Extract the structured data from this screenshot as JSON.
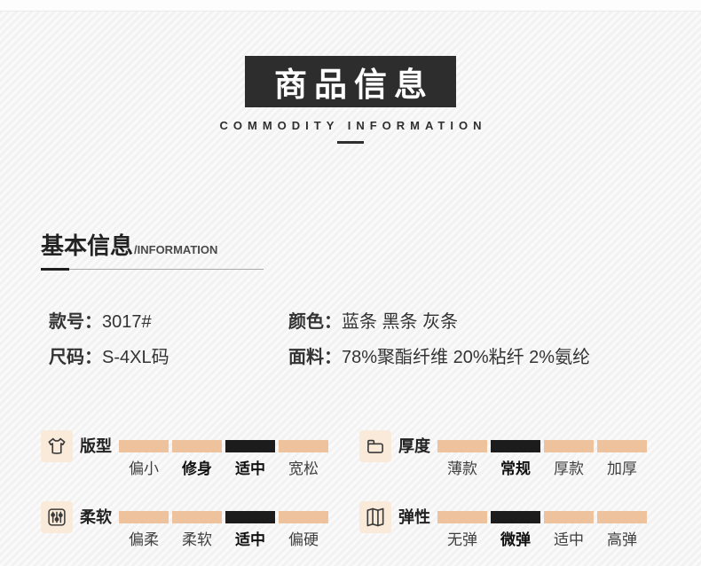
{
  "header": {
    "title": "商品信息",
    "subtitle": "COMMODITY INFORMATION"
  },
  "section": {
    "title": "基本信息",
    "suffix": "/INFORMATION"
  },
  "info": {
    "rows": [
      {
        "label": "款号：",
        "value": "3017#"
      },
      {
        "label": "颜色：",
        "value": "蓝条 黑条 灰条"
      },
      {
        "label": "尺码：",
        "value": "S-4XL码"
      },
      {
        "label": "面料：",
        "value": "78%聚酯纤维 20%粘纤 2%氨纶"
      }
    ]
  },
  "attributes": [
    {
      "id": "fit",
      "name": "版型",
      "icon": "tshirt-icon",
      "active_index": 2,
      "levels": [
        {
          "text": "偏小",
          "bold": false
        },
        {
          "text": "修身",
          "bold": true
        },
        {
          "text": "适中",
          "bold": true
        },
        {
          "text": "宽松",
          "bold": false
        }
      ]
    },
    {
      "id": "thickness",
      "name": "厚度",
      "icon": "clothes-stack-icon",
      "active_index": 1,
      "levels": [
        {
          "text": "薄款",
          "bold": false
        },
        {
          "text": "常规",
          "bold": true
        },
        {
          "text": "厚款",
          "bold": false
        },
        {
          "text": "加厚",
          "bold": false
        }
      ]
    },
    {
      "id": "softness",
      "name": "柔软",
      "icon": "sliders-icon",
      "active_index": 2,
      "levels": [
        {
          "text": "偏柔",
          "bold": false
        },
        {
          "text": "柔软",
          "bold": false
        },
        {
          "text": "适中",
          "bold": true
        },
        {
          "text": "偏硬",
          "bold": false
        }
      ]
    },
    {
      "id": "elasticity",
      "name": "弹性",
      "icon": "fabric-fold-icon",
      "active_index": 1,
      "levels": [
        {
          "text": "无弹",
          "bold": false
        },
        {
          "text": "微弹",
          "bold": true
        },
        {
          "text": "适中",
          "bold": false
        },
        {
          "text": "高弹",
          "bold": false
        }
      ]
    }
  ],
  "colors": {
    "bar_inactive": "#eec29d",
    "bar_active": "#1c1c1c",
    "icon_bg": "#f9ead9",
    "title_box_bg": "#2e2d2e",
    "page_bg": "#f5f5f6"
  }
}
